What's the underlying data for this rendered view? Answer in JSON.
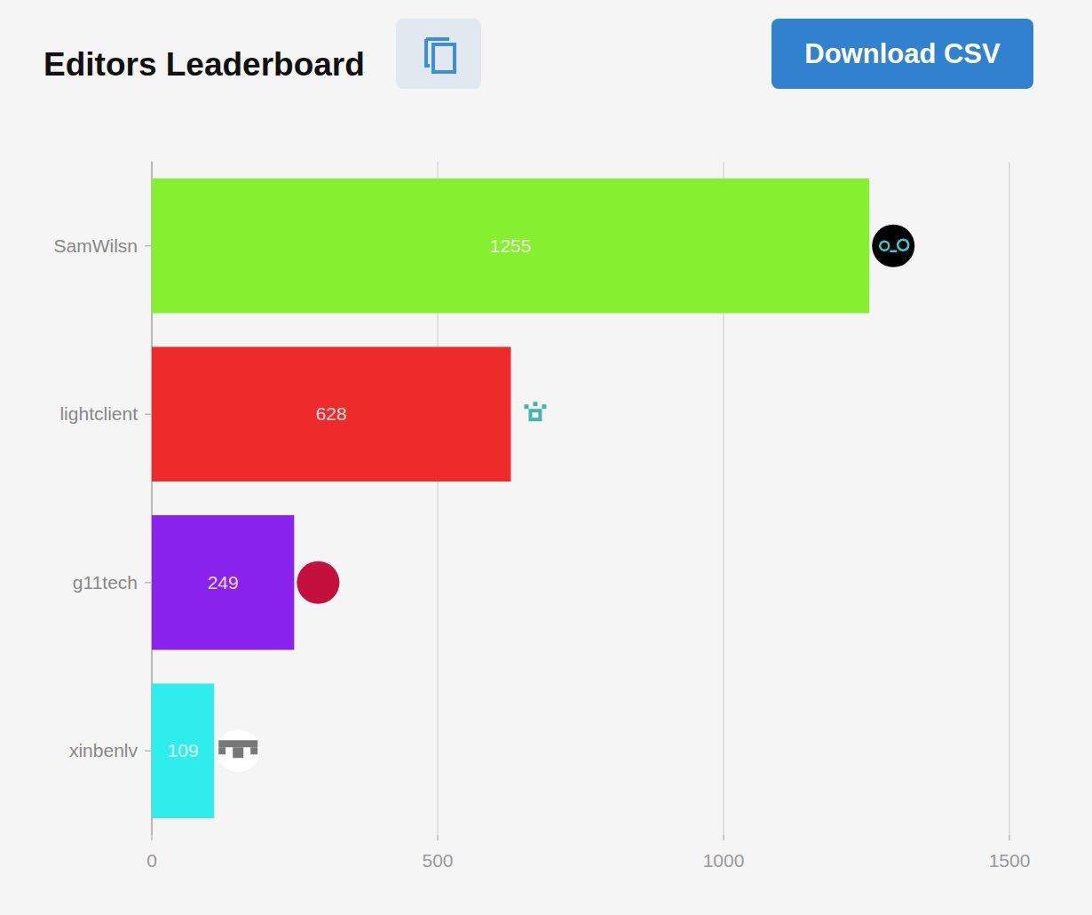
{
  "chart_data": {
    "type": "bar",
    "title": "Editors Leaderboard",
    "orientation": "horizontal",
    "categories": [
      "SamWilsn",
      "lightclient",
      "g11tech",
      "xinbenlv"
    ],
    "values": [
      1255,
      628,
      249,
      109
    ],
    "colors": [
      "#86ef2f",
      "#ee2a2a",
      "#8a22ee",
      "#30eded"
    ],
    "xlim": [
      0,
      1500
    ],
    "xticks": [
      0,
      500,
      1000,
      1500
    ],
    "grid": true,
    "data_labels": true
  },
  "page": {
    "button": "Download CSV"
  }
}
